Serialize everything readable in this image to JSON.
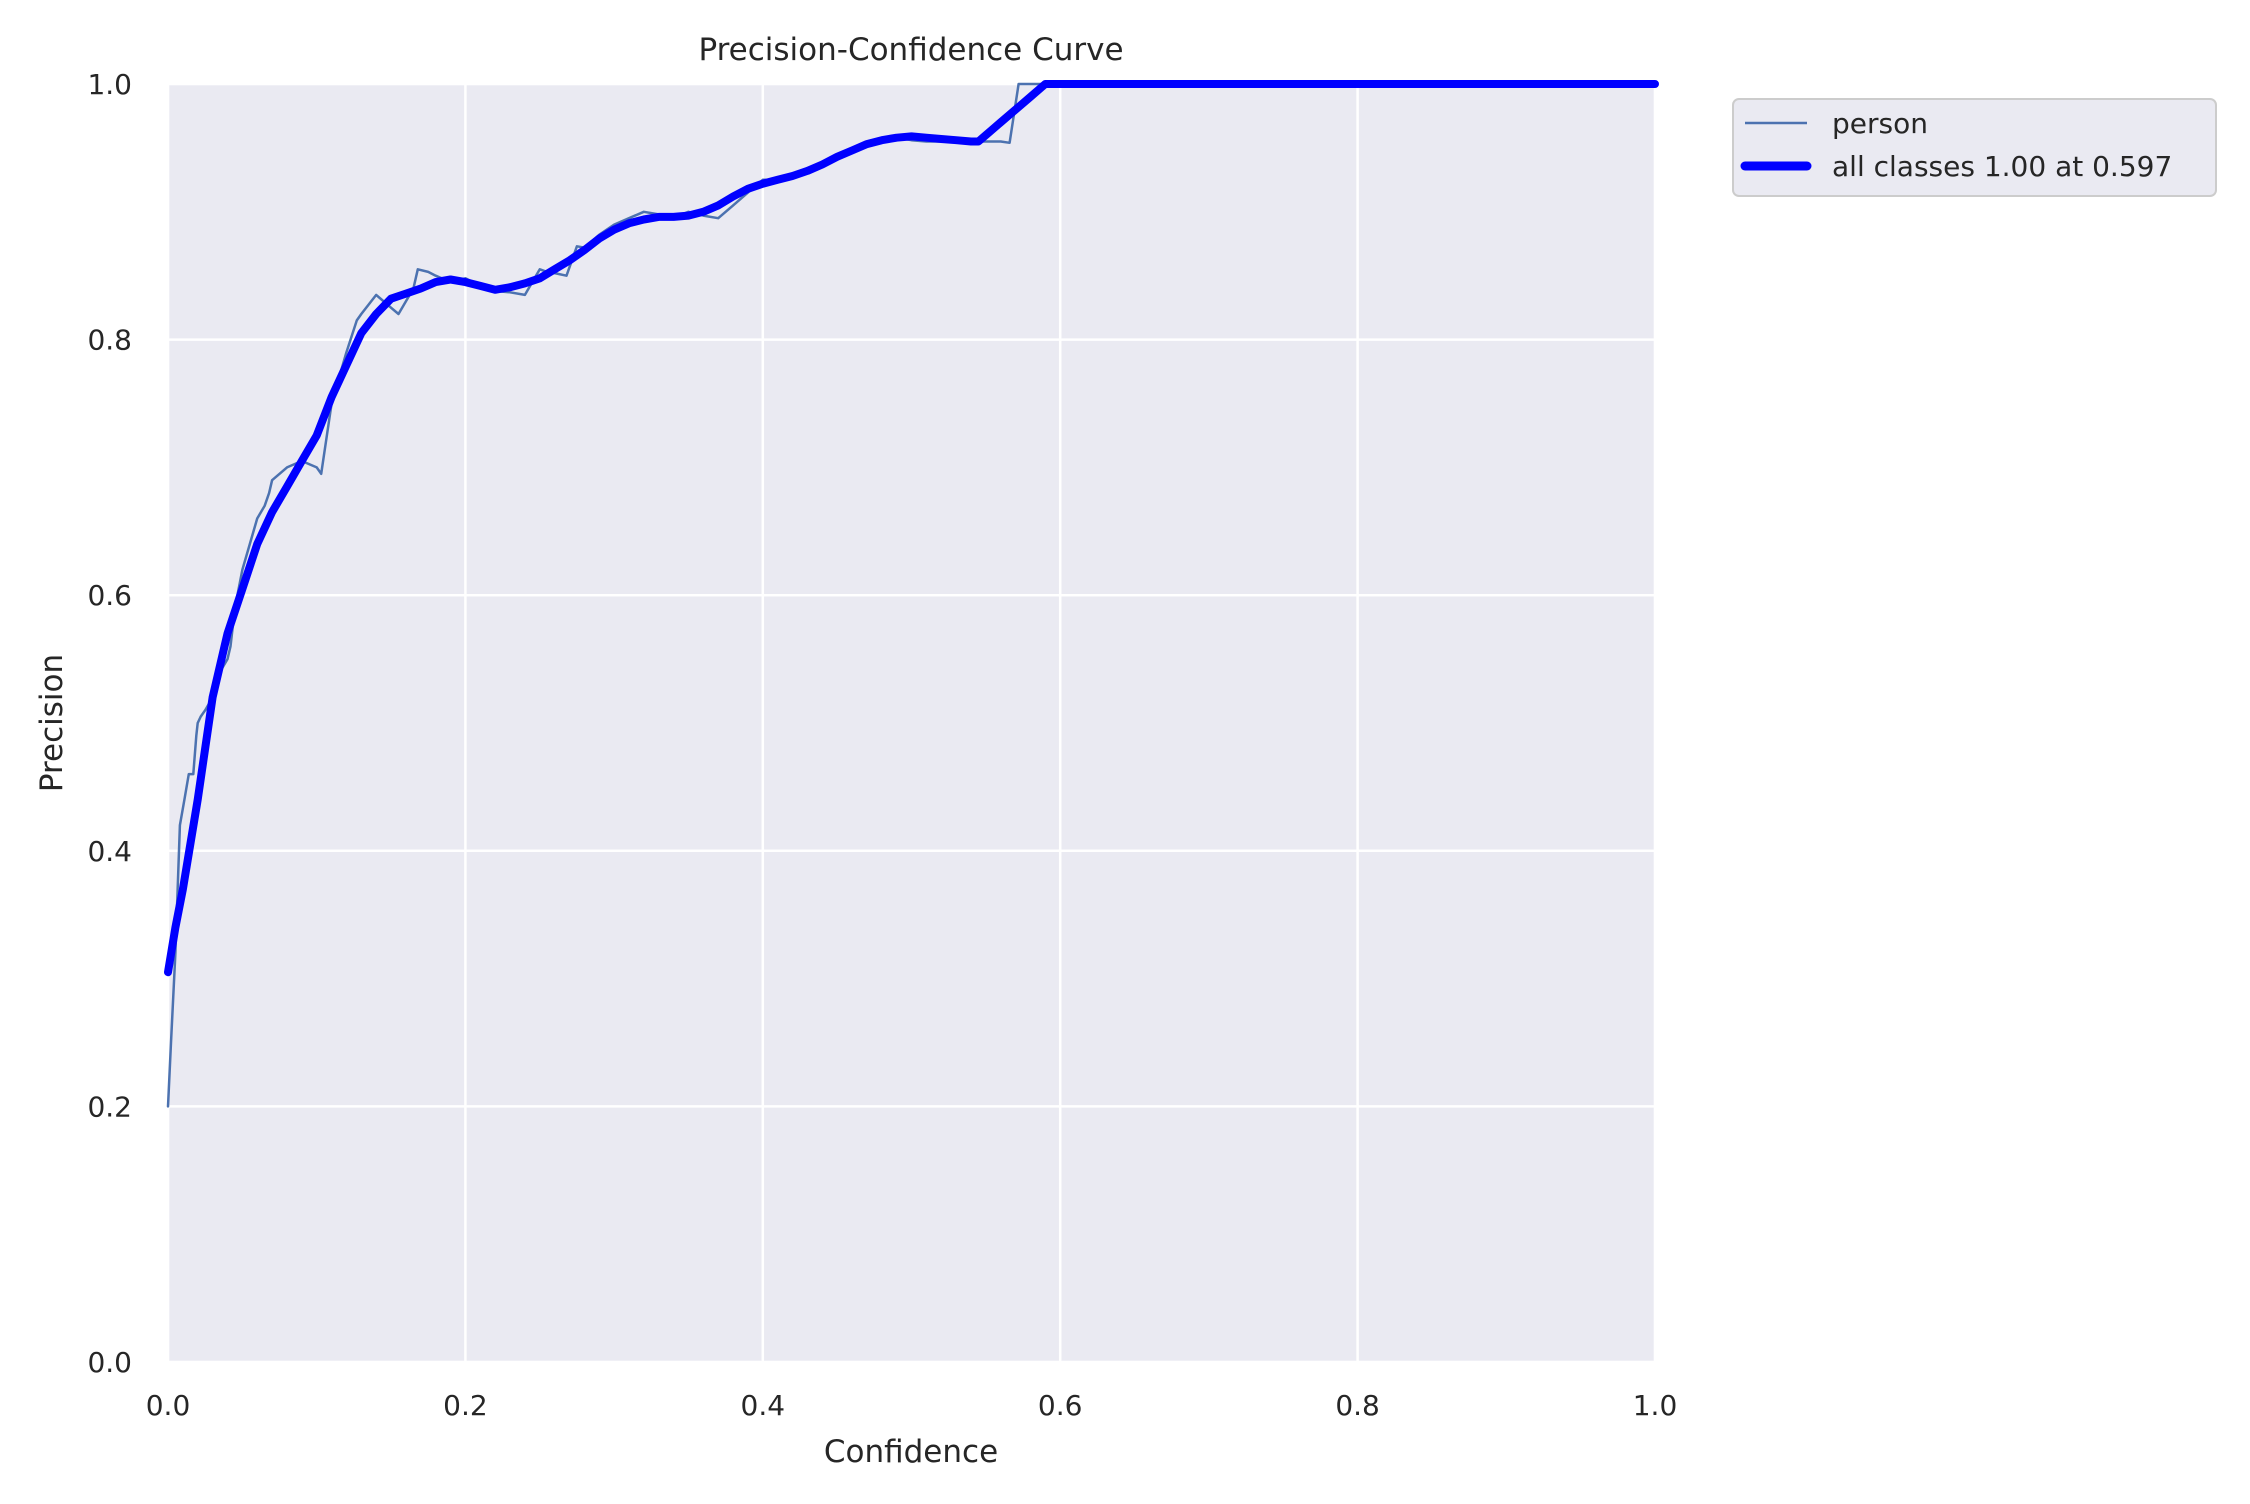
{
  "chart_data": {
    "type": "line",
    "title": "Precision-Confidence Curve",
    "xlabel": "Confidence",
    "ylabel": "Precision",
    "xlim": [
      0,
      1
    ],
    "ylim": [
      0,
      1
    ],
    "xticks": [
      "0.0",
      "0.2",
      "0.4",
      "0.6",
      "0.8",
      "1.0"
    ],
    "yticks": [
      "0.0",
      "0.2",
      "0.4",
      "0.6",
      "0.8",
      "1.0"
    ],
    "grid": true,
    "legend_position": "outside-top-right",
    "colors": {
      "plot_bg": "#eaeaf2",
      "grid": "#ffffff",
      "person": "#4c72b0",
      "all": "#0000ff"
    },
    "series": [
      {
        "name": "person",
        "x": [
          0.0,
          0.002,
          0.005,
          0.008,
          0.011,
          0.014,
          0.017,
          0.019,
          0.02,
          0.022,
          0.025,
          0.03,
          0.035,
          0.04,
          0.042,
          0.045,
          0.05,
          0.055,
          0.06,
          0.065,
          0.068,
          0.07,
          0.08,
          0.09,
          0.1,
          0.103,
          0.11,
          0.12,
          0.127,
          0.13,
          0.14,
          0.15,
          0.155,
          0.165,
          0.168,
          0.175,
          0.18,
          0.19,
          0.2,
          0.21,
          0.22,
          0.23,
          0.24,
          0.245,
          0.25,
          0.255,
          0.26,
          0.268,
          0.275,
          0.28,
          0.29,
          0.3,
          0.31,
          0.32,
          0.33,
          0.34,
          0.35,
          0.36,
          0.37,
          0.38,
          0.39,
          0.4,
          0.41,
          0.42,
          0.43,
          0.44,
          0.45,
          0.46,
          0.47,
          0.48,
          0.49,
          0.5,
          0.51,
          0.52,
          0.53,
          0.54,
          0.55,
          0.56,
          0.566,
          0.572,
          0.58,
          0.59,
          0.6,
          0.7,
          0.8,
          0.9,
          1.0
        ],
        "values": [
          0.2,
          0.25,
          0.32,
          0.42,
          0.44,
          0.46,
          0.46,
          0.49,
          0.5,
          0.505,
          0.51,
          0.52,
          0.54,
          0.55,
          0.56,
          0.59,
          0.62,
          0.64,
          0.66,
          0.67,
          0.68,
          0.69,
          0.7,
          0.705,
          0.7,
          0.695,
          0.75,
          0.79,
          0.815,
          0.82,
          0.835,
          0.825,
          0.82,
          0.84,
          0.855,
          0.853,
          0.85,
          0.845,
          0.848,
          0.842,
          0.838,
          0.837,
          0.835,
          0.845,
          0.855,
          0.853,
          0.852,
          0.85,
          0.873,
          0.872,
          0.882,
          0.89,
          0.895,
          0.9,
          0.898,
          0.895,
          0.9,
          0.897,
          0.895,
          0.905,
          0.915,
          0.925,
          0.925,
          0.93,
          0.932,
          0.937,
          0.945,
          0.95,
          0.955,
          0.958,
          0.958,
          0.956,
          0.955,
          0.955,
          0.955,
          0.955,
          0.955,
          0.955,
          0.954,
          1.0,
          1.0,
          1.0,
          1.0,
          1.0,
          1.0,
          1.0,
          1.0
        ]
      },
      {
        "name": "all classes 1.00 at 0.597",
        "x": [
          0.0,
          0.005,
          0.01,
          0.02,
          0.03,
          0.04,
          0.05,
          0.06,
          0.07,
          0.08,
          0.09,
          0.1,
          0.11,
          0.12,
          0.13,
          0.14,
          0.15,
          0.16,
          0.17,
          0.18,
          0.19,
          0.2,
          0.21,
          0.22,
          0.23,
          0.24,
          0.25,
          0.26,
          0.27,
          0.28,
          0.29,
          0.3,
          0.31,
          0.32,
          0.33,
          0.34,
          0.35,
          0.36,
          0.37,
          0.38,
          0.39,
          0.4,
          0.41,
          0.42,
          0.43,
          0.44,
          0.45,
          0.46,
          0.47,
          0.48,
          0.49,
          0.5,
          0.51,
          0.52,
          0.53,
          0.54,
          0.545,
          0.55,
          0.56,
          0.57,
          0.58,
          0.59,
          0.597,
          0.6,
          0.7,
          0.8,
          0.9,
          1.0
        ],
        "values": [
          0.305,
          0.34,
          0.37,
          0.44,
          0.52,
          0.57,
          0.605,
          0.64,
          0.665,
          0.685,
          0.705,
          0.725,
          0.755,
          0.78,
          0.805,
          0.82,
          0.832,
          0.836,
          0.84,
          0.845,
          0.847,
          0.845,
          0.842,
          0.839,
          0.841,
          0.844,
          0.848,
          0.855,
          0.862,
          0.87,
          0.879,
          0.886,
          0.891,
          0.894,
          0.896,
          0.896,
          0.897,
          0.9,
          0.905,
          0.912,
          0.918,
          0.922,
          0.925,
          0.928,
          0.932,
          0.937,
          0.943,
          0.948,
          0.953,
          0.956,
          0.958,
          0.959,
          0.958,
          0.957,
          0.956,
          0.955,
          0.955,
          0.96,
          0.97,
          0.98,
          0.99,
          1.0,
          1.0,
          1.0,
          1.0,
          1.0,
          1.0,
          1.0
        ]
      }
    ]
  }
}
